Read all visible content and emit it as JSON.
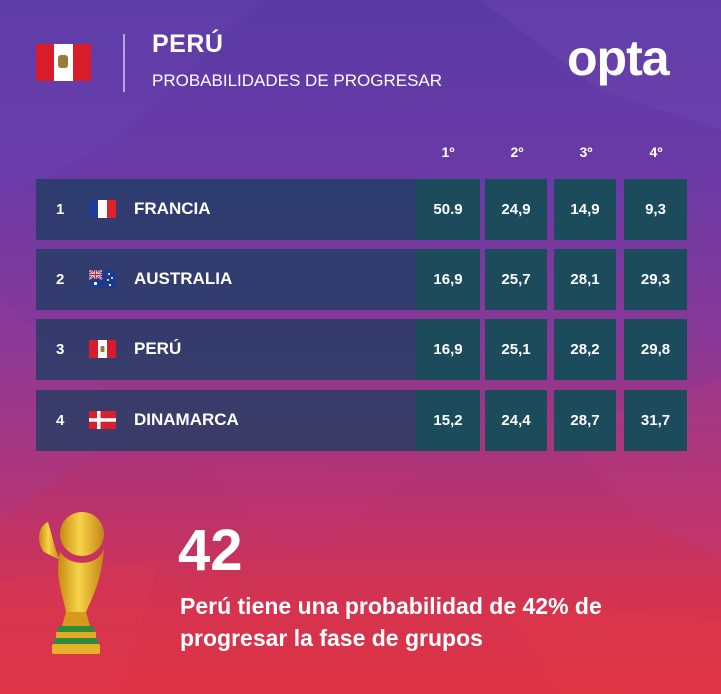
{
  "header": {
    "team": "PERÚ",
    "subtitle": "PROBABILIDADES DE PROGRESAR",
    "brand": "opta",
    "team_flag_icon": "peru-flag-icon"
  },
  "table": {
    "columns": [
      "1º",
      "2º",
      "3º",
      "4º"
    ],
    "rows": [
      {
        "rank": "1",
        "team": "FRANCIA",
        "flag": "france-flag-icon",
        "values": [
          "50.9",
          "24,9",
          "14,9",
          "9,3"
        ]
      },
      {
        "rank": "2",
        "team": "AUSTRALIA",
        "flag": "australia-flag-icon",
        "values": [
          "16,9",
          "25,7",
          "28,1",
          "29,3"
        ]
      },
      {
        "rank": "3",
        "team": "PERÚ",
        "flag": "peru-flag-icon",
        "values": [
          "16,9",
          "25,1",
          "28,2",
          "29,8"
        ]
      },
      {
        "rank": "4",
        "team": "DINAMARCA",
        "flag": "denmark-flag-icon",
        "values": [
          "15,2",
          "24,4",
          "28,7",
          "31,7"
        ]
      }
    ]
  },
  "summary": {
    "big_number": "42",
    "line1": "Perú tiene una probabilidad de 42% de",
    "line2": "progresar la fase de grupos",
    "trophy_icon": "world-cup-trophy-icon"
  },
  "colors": {
    "row_bg": "#1e3e62",
    "cell_bg": "#1c4c5c",
    "peru_red": "#d91c2a",
    "bg_top": "#5a3aa5",
    "bg_bottom": "#dd3345"
  }
}
